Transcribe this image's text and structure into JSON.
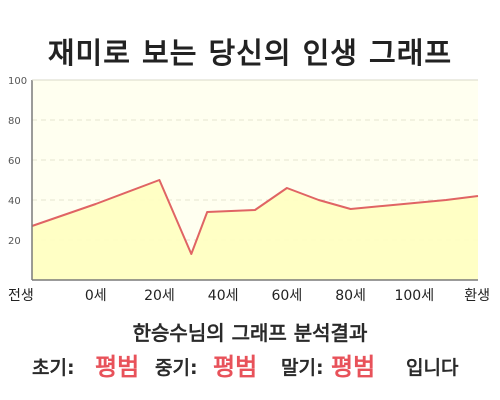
{
  "title": "재미로 보는 당신의 인생 그래프",
  "chart_data": {
    "type": "area",
    "x_categories": [
      "전생",
      "0세",
      "20세",
      "40세",
      "60세",
      "80세",
      "100세",
      "환생"
    ],
    "points": [
      {
        "age": "전생",
        "y": 27
      },
      {
        "age": "0세",
        "y": 38
      },
      {
        "age": "20세",
        "y": 50
      },
      {
        "age": "30세",
        "y": 13
      },
      {
        "age": "35세",
        "y": 34
      },
      {
        "age": "50세",
        "y": 35
      },
      {
        "age": "60세",
        "y": 46
      },
      {
        "age": "70세",
        "y": 40
      },
      {
        "age": "80세",
        "y": 35.5
      },
      {
        "age": "90세",
        "y": 37
      },
      {
        "age": "100세",
        "y": 38.5
      },
      {
        "age": "110세",
        "y": 40
      },
      {
        "age": "환생",
        "y": 42
      }
    ],
    "y_ticks": [
      "20",
      "40",
      "60",
      "80",
      "100"
    ],
    "ylim": [
      0,
      100
    ],
    "grid": true,
    "colors": {
      "line": "#e06464",
      "fill": "#ffffc0",
      "background": "#fffff0",
      "grid": "#e6e6cf",
      "axis": "#7a7a7a"
    }
  },
  "analysis": {
    "heading": "한승수님의 그래프 분석결과",
    "early_label": "초기:",
    "early_value": "평범",
    "middle_label": "중기:",
    "middle_value": "평범",
    "late_label": "말기:",
    "late_value": "평범",
    "ending": "입니다"
  }
}
